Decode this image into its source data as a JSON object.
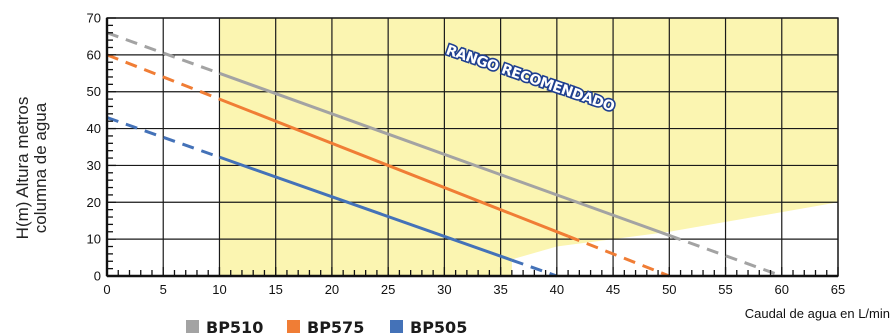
{
  "chart_data": {
    "type": "line",
    "xlabel": "Caudal de agua en L/min",
    "ylabel_lines": [
      "H(m) Altura metros",
      "columna de agua"
    ],
    "xlim": [
      0,
      65
    ],
    "ylim": [
      0,
      70
    ],
    "x_ticks": [
      0,
      5,
      10,
      15,
      20,
      25,
      30,
      35,
      40,
      45,
      50,
      55,
      60,
      65
    ],
    "y_ticks": [
      0,
      10,
      20,
      30,
      40,
      50,
      60,
      70
    ],
    "x_tick_labels": [
      "0",
      "5",
      "10",
      "15",
      "20",
      "25",
      "30",
      "35",
      "40",
      "45",
      "50",
      "55",
      "60",
      "65"
    ],
    "y_tick_labels": [
      "0",
      "10",
      "20",
      "30",
      "40",
      "50",
      "60",
      "70"
    ],
    "grid": true,
    "legend_position": "bottom-left",
    "recommended_range": {
      "label": "RANGO RECOMENDADO",
      "fill_color": "#fbf5b1",
      "polygon": [
        [
          10,
          70
        ],
        [
          65,
          70
        ],
        [
          65,
          20
        ],
        [
          50,
          12
        ],
        [
          40,
          8
        ],
        [
          36,
          4.5
        ],
        [
          36,
          0
        ],
        [
          10,
          0
        ]
      ]
    },
    "series": [
      {
        "name": "BP510",
        "color": "#a3a3a3",
        "points": [
          [
            0,
            66
          ],
          [
            60,
            0
          ]
        ],
        "solid_range": [
          10,
          50
        ]
      },
      {
        "name": "BP575",
        "color": "#f07d35",
        "points": [
          [
            0,
            60
          ],
          [
            50,
            0
          ]
        ],
        "solid_range": [
          10,
          41
        ]
      },
      {
        "name": "BP505",
        "color": "#4472b8",
        "points": [
          [
            0,
            43
          ],
          [
            40,
            0
          ]
        ],
        "solid_range": [
          10,
          36
        ]
      }
    ]
  }
}
